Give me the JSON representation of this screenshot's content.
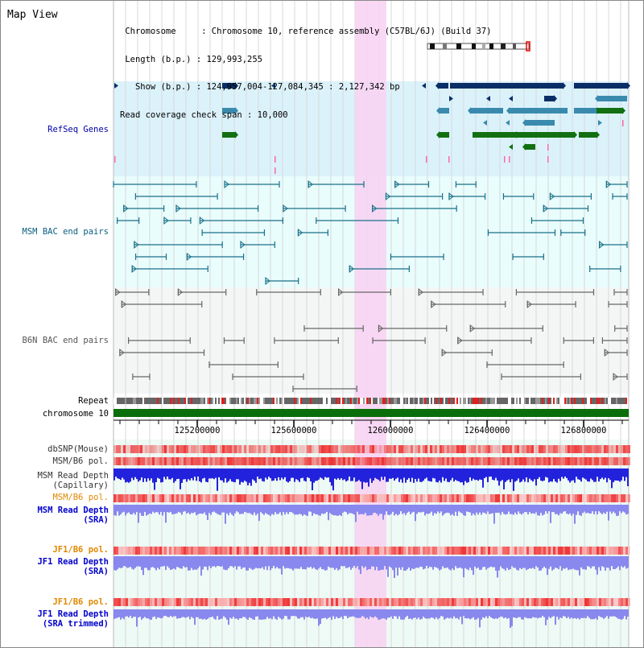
{
  "view": {
    "title": "Map View",
    "info_lines": [
      " Chromosome     : Chromosome 10, reference assembly (C57BL/6J) (Build 37)",
      " Length (b.p.) : 129,993,255",
      "   Show (b.p.) : 124,957,004-127,084,345 : 2,127,342 bp",
      "Read coverage check span : 10,000"
    ]
  },
  "tracks": {
    "refseq": "RefSeq Genes",
    "msm_bac": "MSM BAC end pairs",
    "b6n_bac": "B6N BAC end pairs",
    "repeat": "Repeat",
    "chromosome": "chromosome 10",
    "dbsnp": "dbSNP(Mouse)",
    "msm_b6_pol": "MSM/B6 pol.",
    "msm_depth_cap": "MSM Read Depth\n(Capillary)",
    "msm_b6_pol2": "MSM/B6 pol.",
    "msm_depth_sra": "MSM Read Depth\n(SRA)",
    "jf1_b6_pol": "JF1/B6 pol.",
    "jf1_depth_sra": "JF1 Read Depth\n(SRA)",
    "jf1_b6_pol2": "JF1/B6 pol.",
    "jf1_depth_trim": "JF1 Read Depth\n(SRA trimmed)"
  },
  "ruler": {
    "ticks": [
      "125200000",
      "125600000",
      "126000000",
      "126400000",
      "126800000"
    ]
  },
  "colors": {
    "refseq_bg": "#dbf2fb",
    "bac_bg": "#e9fdfd",
    "highlight": "#f7d4f3",
    "gene_dark": "#0a2e66",
    "gene_mid": "#3a8aae",
    "gene_green": "#127012",
    "msm_line": "#1a7088",
    "b6n_line": "#666666",
    "chromosome": "#0a6e0a",
    "pol_red": "#ee3333",
    "depth_blue": "#2222dd",
    "depth_light": "#8888ee"
  }
}
